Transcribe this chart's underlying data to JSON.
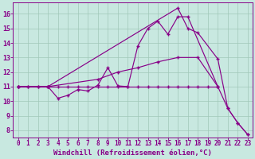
{
  "background_color": "#c8e8e0",
  "grid_color": "#a0c8b8",
  "line_color": "#880088",
  "xlabel": "Windchill (Refroidissement éolien,°C)",
  "xlim": [
    -0.5,
    23.5
  ],
  "ylim": [
    7.5,
    16.8
  ],
  "yticks": [
    8,
    9,
    10,
    11,
    12,
    13,
    14,
    15,
    16
  ],
  "xticks": [
    0,
    1,
    2,
    3,
    4,
    5,
    6,
    7,
    8,
    9,
    10,
    11,
    12,
    13,
    14,
    15,
    16,
    17,
    18,
    19,
    20,
    21,
    22,
    23
  ],
  "line_wavy_x": [
    0,
    1,
    2,
    3,
    4,
    5,
    6,
    7,
    8,
    9,
    10,
    11,
    12,
    13,
    14,
    15,
    16,
    17,
    20
  ],
  "line_wavy_y": [
    11,
    11,
    11,
    11,
    10.2,
    10.4,
    10.8,
    10.7,
    11.1,
    12.3,
    11.05,
    11.0,
    13.8,
    15.0,
    15.5,
    14.6,
    15.8,
    15.8,
    11.0
  ],
  "line_upper_x": [
    0,
    3,
    16,
    17,
    18,
    20,
    21,
    22,
    23
  ],
  "line_upper_y": [
    11,
    11,
    16.4,
    15.0,
    14.7,
    12.9,
    9.5,
    8.5,
    7.7
  ],
  "line_flat_x": [
    0,
    1,
    2,
    3,
    4,
    5,
    6,
    7,
    8,
    9,
    10,
    11,
    12,
    13,
    14,
    15,
    16,
    17,
    18,
    19,
    20
  ],
  "line_flat_y": [
    11,
    11,
    11,
    11,
    11,
    11,
    11,
    11,
    11,
    11,
    11,
    11,
    11,
    11,
    11,
    11,
    11,
    11,
    11,
    11,
    11
  ],
  "line_slope_x": [
    0,
    3,
    8,
    10,
    12,
    14,
    16,
    18,
    20,
    21,
    22,
    23
  ],
  "line_slope_y": [
    11,
    11,
    11.5,
    12.0,
    12.3,
    12.7,
    13.0,
    13.0,
    11.0,
    9.5,
    8.5,
    7.7
  ]
}
